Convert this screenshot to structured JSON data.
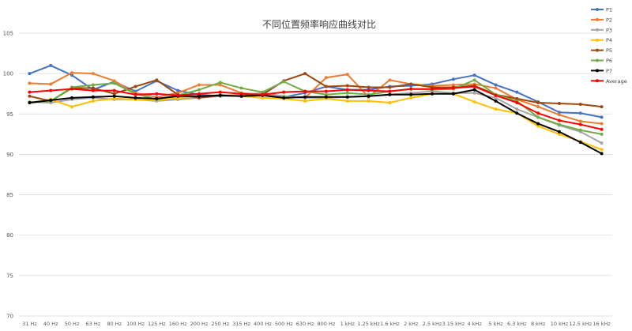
{
  "chart_data": {
    "type": "line",
    "title": "不同位置频率响应曲线对比",
    "xlabel": "",
    "ylabel": "",
    "ylim": [
      70,
      105
    ],
    "yticks": [
      70,
      75,
      80,
      85,
      90,
      95,
      100,
      105
    ],
    "grid": true,
    "legend_position": "top-right",
    "categories": [
      "31 Hz",
      "40 Hz",
      "50 Hz",
      "63 Hz",
      "80 Hz",
      "100 Hz",
      "125 Hz",
      "160 Hz",
      "200 Hz",
      "250 Hz",
      "315 Hz",
      "400 Hz",
      "500 Hz",
      "630 Hz",
      "800 Hz",
      "1 kHz",
      "1.25 kHz",
      "1.6 kHz",
      "2 kHz",
      "2.5 kHz",
      "3.15 kHz",
      "4 kHz",
      "5 kHz",
      "6.3 kHz",
      "8 kHz",
      "10 kHz",
      "12.5 kHz",
      "16 kHz"
    ],
    "series": [
      {
        "name": "P1",
        "color": "#4472c4",
        "values": [
          100.0,
          101.0,
          99.8,
          98.0,
          99.0,
          97.8,
          99.1,
          97.9,
          97.4,
          97.2,
          97.3,
          97.6,
          97.1,
          97.6,
          98.4,
          98.0,
          98.0,
          98.4,
          98.5,
          98.7,
          99.3,
          99.8,
          98.6,
          97.7,
          96.5,
          95.2,
          95.1,
          94.6
        ]
      },
      {
        "name": "P2",
        "color": "#ed7d31",
        "values": [
          98.8,
          98.7,
          100.1,
          100.0,
          99.1,
          97.6,
          97.1,
          97.6,
          98.6,
          98.6,
          97.6,
          97.4,
          97.2,
          97.0,
          99.5,
          99.9,
          97.1,
          99.2,
          98.7,
          98.5,
          98.6,
          98.7,
          98.2,
          96.8,
          95.9,
          94.9,
          94.1,
          93.8
        ]
      },
      {
        "name": "P3",
        "color": "#a5a5a5",
        "values": [
          96.5,
          96.4,
          96.8,
          97.0,
          96.8,
          96.8,
          96.6,
          96.8,
          97.0,
          97.2,
          97.4,
          97.6,
          97.2,
          97.0,
          97.0,
          97.1,
          97.2,
          97.4,
          97.6,
          97.8,
          97.6,
          97.6,
          97.0,
          95.6,
          94.6,
          93.6,
          92.8,
          91.4
        ]
      },
      {
        "name": "P4",
        "color": "#ffc000",
        "values": [
          96.4,
          96.8,
          95.9,
          96.6,
          96.9,
          96.8,
          96.7,
          97.0,
          97.1,
          97.4,
          97.2,
          97.0,
          96.9,
          96.6,
          96.9,
          96.6,
          96.6,
          96.4,
          97.0,
          97.5,
          97.5,
          96.5,
          95.6,
          95.1,
          93.5,
          92.5,
          91.6,
          90.6
        ]
      },
      {
        "name": "P5",
        "color": "#9e480e",
        "values": [
          97.2,
          96.6,
          98.2,
          98.2,
          97.5,
          98.4,
          99.2,
          97.4,
          97.0,
          97.3,
          97.2,
          97.4,
          99.1,
          100.0,
          98.4,
          98.5,
          98.3,
          98.3,
          98.7,
          98.3,
          98.3,
          98.5,
          97.4,
          96.9,
          96.4,
          96.3,
          96.2,
          95.9
        ]
      },
      {
        "name": "P6",
        "color": "#70ad47",
        "values": [
          96.4,
          96.6,
          98.3,
          98.6,
          98.8,
          97.5,
          96.8,
          97.3,
          98.0,
          98.9,
          98.2,
          97.7,
          99.0,
          97.8,
          97.4,
          97.6,
          97.4,
          97.8,
          98.1,
          98.0,
          98.1,
          99.2,
          97.4,
          96.6,
          94.6,
          93.7,
          93.0,
          92.5
        ]
      },
      {
        "name": "P7",
        "color": "#000000",
        "values": [
          96.4,
          96.7,
          97.0,
          97.1,
          97.2,
          97.0,
          96.9,
          97.2,
          97.2,
          97.3,
          97.2,
          97.3,
          97.0,
          97.1,
          97.1,
          97.1,
          97.2,
          97.4,
          97.4,
          97.5,
          97.5,
          98.0,
          96.6,
          95.1,
          93.8,
          92.8,
          91.5,
          90.1
        ]
      },
      {
        "name": "Average",
        "color": "#ff0000",
        "values": [
          97.7,
          97.9,
          98.1,
          97.9,
          97.9,
          97.4,
          97.5,
          97.3,
          97.5,
          97.7,
          97.5,
          97.4,
          97.7,
          97.8,
          97.8,
          98.0,
          97.9,
          97.8,
          98.1,
          98.1,
          98.2,
          98.4,
          97.3,
          96.4,
          95.1,
          94.2,
          93.7,
          93.1
        ]
      }
    ]
  }
}
